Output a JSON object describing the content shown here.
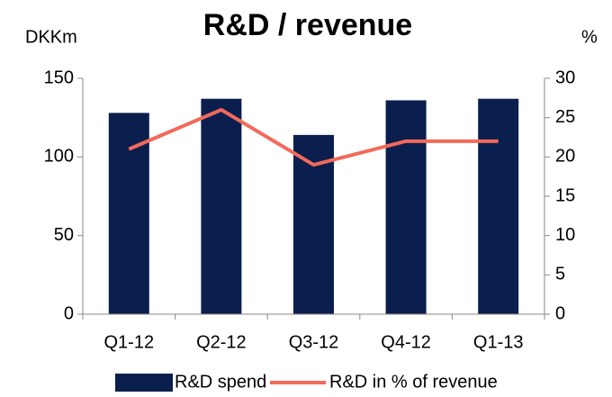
{
  "chart_data": {
    "type": "bar_line",
    "title": "R&D / revenue",
    "y_label": "DKKm",
    "y2_label": "%",
    "categories": [
      "Q1-12",
      "Q2-12",
      "Q3-12",
      "Q4-12",
      "Q1-13"
    ],
    "series": [
      {
        "name": "R&D spend",
        "type": "bar",
        "color": "#0b1f4e",
        "values": [
          128,
          137,
          114,
          136,
          137
        ]
      },
      {
        "name": "R&D in % of revenue",
        "type": "line",
        "axis": "y2",
        "color": "#f26a5a",
        "values": [
          21,
          26,
          19,
          22,
          22
        ]
      }
    ],
    "ylim": [
      0,
      150
    ],
    "yticks": [
      0,
      50,
      100,
      150
    ],
    "y2lim": [
      0,
      30
    ],
    "y2ticks": [
      0,
      5,
      10,
      15,
      20,
      25,
      30
    ],
    "legend": "bottom"
  }
}
